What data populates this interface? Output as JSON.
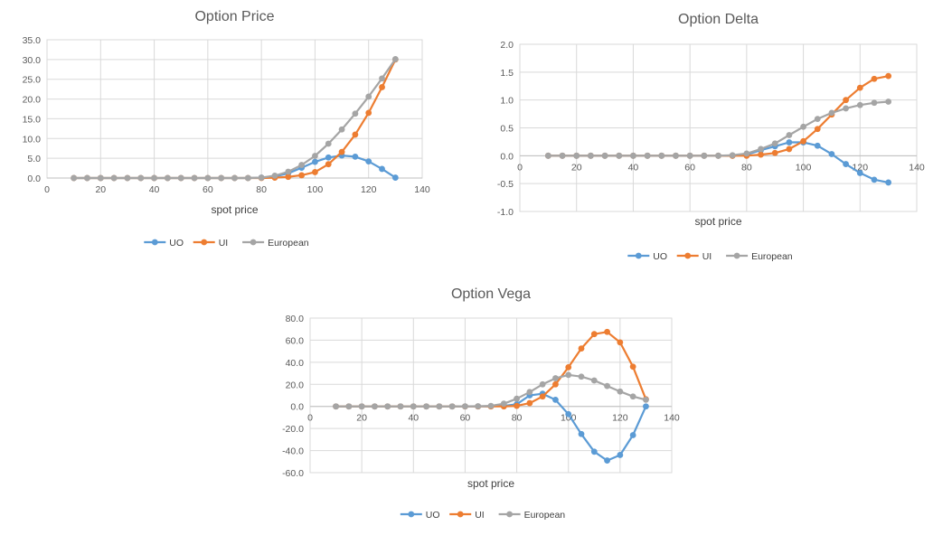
{
  "x": [
    10,
    15,
    20,
    25,
    30,
    35,
    40,
    45,
    50,
    55,
    60,
    65,
    70,
    75,
    80,
    85,
    90,
    95,
    100,
    105,
    110,
    115,
    120,
    125,
    130
  ],
  "chart_data": [
    {
      "type": "line",
      "title": "Option Price",
      "xlabel": "spot price",
      "ylabel": "",
      "xlim": [
        0,
        140
      ],
      "ylim": [
        0,
        35
      ],
      "xticks": [
        "0",
        "20",
        "40",
        "60",
        "80",
        "100",
        "120",
        "140"
      ],
      "yticks": [
        "0.0",
        "5.0",
        "10.0",
        "15.0",
        "20.0",
        "25.0",
        "30.0",
        "35.0"
      ],
      "grid": true,
      "legend": "bottom",
      "series": [
        {
          "name": "UO",
          "color": "#5B9BD5",
          "values": [
            0,
            0,
            0,
            0,
            0,
            0,
            0,
            0,
            0,
            0,
            0,
            0,
            0,
            0,
            0.1,
            0.4,
            1.2,
            2.6,
            4.1,
            5.2,
            5.7,
            5.4,
            4.2,
            2.3,
            0.1
          ]
        },
        {
          "name": "UI",
          "color": "#ED7D31",
          "values": [
            0,
            0,
            0,
            0,
            0,
            0,
            0,
            0,
            0,
            0,
            0,
            0,
            0,
            0,
            0,
            0.1,
            0.3,
            0.7,
            1.5,
            3.5,
            6.6,
            11.0,
            16.5,
            23.0,
            30.0
          ]
        },
        {
          "name": "European",
          "color": "#A5A5A5",
          "values": [
            0,
            0,
            0,
            0,
            0,
            0,
            0,
            0,
            0,
            0,
            0,
            0,
            0,
            0,
            0.1,
            0.6,
            1.6,
            3.3,
            5.6,
            8.7,
            12.3,
            16.3,
            20.6,
            25.2,
            30.1
          ]
        }
      ]
    },
    {
      "type": "line",
      "title": "Option Delta",
      "xlabel": "spot price",
      "ylabel": "",
      "xlim": [
        0,
        140
      ],
      "ylim": [
        -1.0,
        2.0
      ],
      "xticks": [
        "0",
        "20",
        "40",
        "60",
        "80",
        "100",
        "120",
        "140"
      ],
      "yticks": [
        "-1.0",
        "-0.5",
        "0.0",
        "0.5",
        "1.0",
        "1.5",
        "2.0"
      ],
      "grid": true,
      "legend": "bottom",
      "series": [
        {
          "name": "UO",
          "color": "#5B9BD5",
          "values": [
            0,
            0,
            0,
            0,
            0,
            0,
            0,
            0,
            0,
            0,
            0,
            0,
            0,
            0,
            0.02,
            0.1,
            0.17,
            0.24,
            0.24,
            0.18,
            0.03,
            -0.15,
            -0.31,
            -0.43,
            -0.48
          ]
        },
        {
          "name": "UI",
          "color": "#ED7D31",
          "values": [
            0,
            0,
            0,
            0,
            0,
            0,
            0,
            0,
            0,
            0,
            0,
            0,
            0,
            0,
            0,
            0.02,
            0.05,
            0.12,
            0.26,
            0.48,
            0.74,
            1.0,
            1.22,
            1.38,
            1.43
          ]
        },
        {
          "name": "European",
          "color": "#A5A5A5",
          "values": [
            0,
            0,
            0,
            0,
            0,
            0,
            0,
            0,
            0,
            0,
            0,
            0,
            0,
            0.01,
            0.04,
            0.12,
            0.22,
            0.37,
            0.52,
            0.66,
            0.77,
            0.85,
            0.91,
            0.95,
            0.97
          ]
        }
      ]
    },
    {
      "type": "line",
      "title": "Option Vega",
      "xlabel": "spot price",
      "ylabel": "",
      "xlim": [
        0,
        140
      ],
      "ylim": [
        -60,
        80
      ],
      "xticks": [
        "0",
        "20",
        "40",
        "60",
        "80",
        "100",
        "120",
        "140"
      ],
      "yticks": [
        "-60.0",
        "-40.0",
        "-20.0",
        "0.0",
        "20.0",
        "40.0",
        "60.0",
        "80.0"
      ],
      "grid": true,
      "legend": "bottom",
      "series": [
        {
          "name": "UO",
          "color": "#5B9BD5",
          "values": [
            0,
            0,
            0,
            0,
            0,
            0,
            0,
            0,
            0,
            0,
            0,
            0,
            0.1,
            0.5,
            2.0,
            10.0,
            11.5,
            6.0,
            -7.0,
            -25.0,
            -41.0,
            -49.0,
            -44.0,
            -26.0,
            0
          ]
        },
        {
          "name": "UI",
          "color": "#ED7D31",
          "values": [
            0,
            0,
            0,
            0,
            0,
            0,
            0,
            0,
            0,
            0,
            0,
            0,
            0,
            0,
            0.5,
            3.0,
            9.0,
            20.0,
            35.5,
            52.5,
            65.5,
            67.5,
            58.0,
            36.0,
            6.5
          ]
        },
        {
          "name": "European",
          "color": "#A5A5A5",
          "values": [
            0,
            0,
            0,
            0,
            0,
            0,
            0,
            0,
            0,
            0,
            0.1,
            0.2,
            0.5,
            2.5,
            7.0,
            13.0,
            20.0,
            25.5,
            28.5,
            27.0,
            23.5,
            18.5,
            13.5,
            9.0,
            6.0
          ]
        }
      ]
    }
  ]
}
